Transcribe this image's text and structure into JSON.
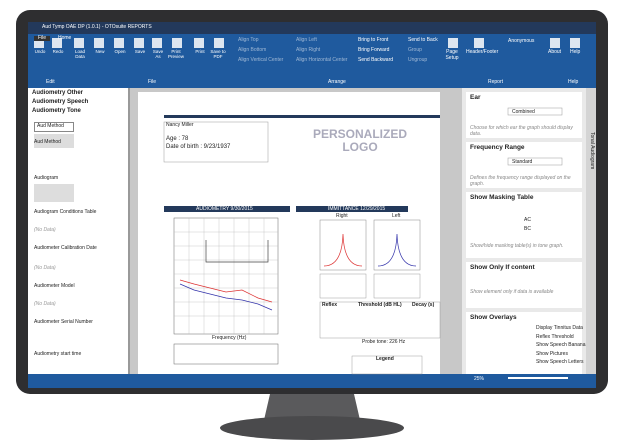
{
  "window": {
    "title": "Aud Tymp OAE DP (1.0.1) - OTOsuite REPORTS"
  },
  "menu": [
    "File",
    "Home"
  ],
  "ribbon": {
    "edit": {
      "buttons": [
        "Undo",
        "Redo"
      ],
      "label": "Edit"
    },
    "file": {
      "buttons": [
        "Load Data",
        "New",
        "Open",
        "Save",
        "Save As",
        "Print Preview",
        "Print",
        "Save to PDF"
      ],
      "label": "File"
    },
    "arrange": {
      "buttons": [
        "Align Top",
        "Align Bottom",
        "Align Vertical Center",
        "Align Left",
        "Align Right",
        "Align Horizontal Center",
        "Bring to Front",
        "Bring Forward",
        "Send Backward",
        "Send to Back",
        "Group",
        "Ungroup"
      ],
      "label": "Arrange"
    },
    "report": {
      "buttons": [
        "Page Setup",
        "Header/Footer",
        "Anonymous"
      ],
      "label": "Report"
    },
    "help": {
      "buttons": [
        "About",
        "Help"
      ],
      "label": "Help"
    }
  },
  "left_panel": {
    "groups": [
      "Audiometry Other",
      "Audiometry Speech",
      "Audiometry Tone"
    ],
    "items": [
      "Aud Method",
      "Aud Method",
      "Audiogram",
      "Audiogram Conditions Table",
      "(No Data)",
      "Audiometer Calibration Date",
      "(No Data)",
      "Audiometer Model",
      "(No Data)",
      "Audiometer Serial Number",
      "Audiometry start time"
    ]
  },
  "report": {
    "name": "Nancy Miller",
    "age": "Age : 78",
    "dob": "Date of birth : 9/23/1937",
    "logo": "PERSONALIZED LOGO",
    "audiometry": "AUDIOMETRY 9/30/2015",
    "immittance": "IMMITTANCE 12/29/2015",
    "right": "Right",
    "left": "Left",
    "x_label": "Frequency (Hz)",
    "reflex": "Reflex",
    "threshold": "Threshold (dB HL)",
    "decay": "Decay (s)",
    "probe": "Probe tone: 226 Hz",
    "legend": "Legend"
  },
  "right_panel": {
    "sections": [
      {
        "title": "Ear",
        "control": "Combined",
        "hint": "Choose for which ear the graph should display data."
      },
      {
        "title": "Frequency Range",
        "control": "Standard",
        "hint": "Defines the frequency range displayed on the graph."
      },
      {
        "title": "Show Masking Table",
        "options": [
          "AC",
          "BC"
        ],
        "hint": "Show/hide masking table(s) in tone graph."
      },
      {
        "title": "Show Only If content",
        "hint": "Show element only if data is available"
      },
      {
        "title": "Show Overlays",
        "options": [
          "Display Tinnitus Data",
          "Reflex Threshold",
          "Show Speech Banana",
          "Show Pictures",
          "Show Speech Letters"
        ]
      }
    ]
  },
  "side_tab": "Tonal Audiogram",
  "status": {
    "zoom": "25%"
  }
}
